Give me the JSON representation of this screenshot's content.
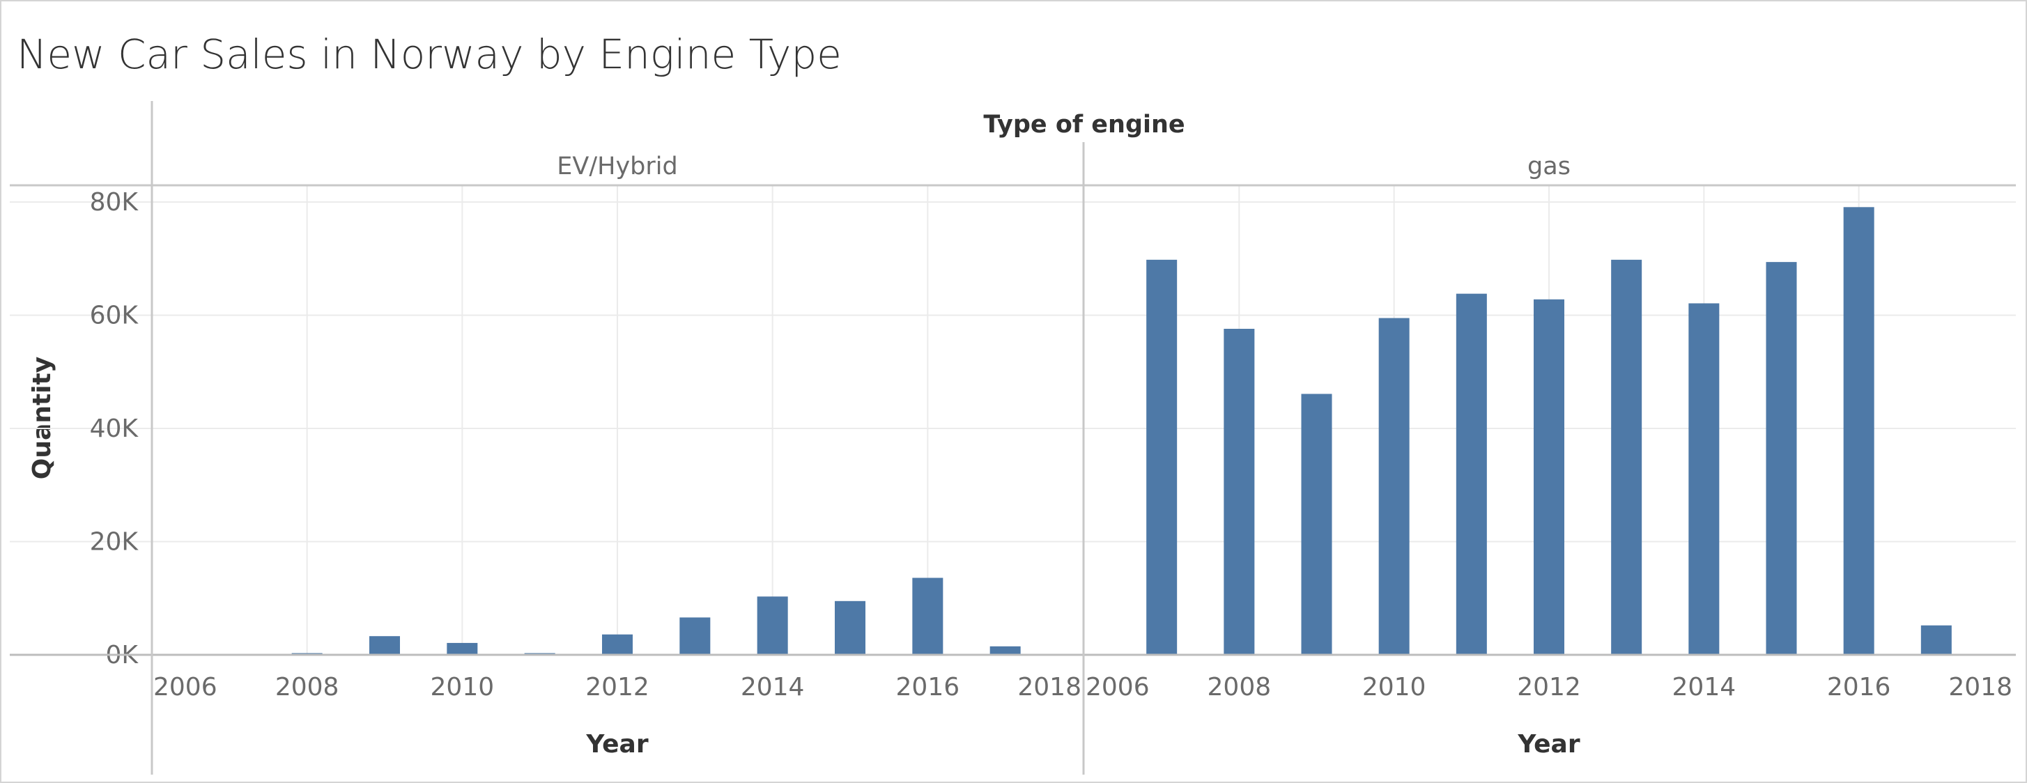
{
  "chart_data": {
    "type": "bar",
    "title": "New Car Sales in Norway by Engine Type",
    "column_header": "Type of engine",
    "xlabel": "Year",
    "ylabel": "Quantity",
    "xlim": [
      2006,
      2018
    ],
    "ylim": [
      0,
      80000
    ],
    "x_ticks": [
      "2006",
      "2008",
      "2010",
      "2012",
      "2014",
      "2016",
      "2018"
    ],
    "y_ticks": [
      "0K",
      "20K",
      "40K",
      "60K",
      "80K"
    ],
    "grid": true,
    "color": "#4e79a7",
    "panels": [
      {
        "name": "EV/Hybrid",
        "x": [
          2008,
          2009,
          2010,
          2011,
          2012,
          2013,
          2014,
          2015,
          2016,
          2017
        ],
        "values": [
          300,
          3300,
          2100,
          300,
          3600,
          6600,
          10300,
          9500,
          13600,
          1500
        ]
      },
      {
        "name": "gas",
        "x": [
          2007,
          2008,
          2009,
          2010,
          2011,
          2012,
          2013,
          2014,
          2015,
          2016,
          2017
        ],
        "values": [
          69800,
          57600,
          46100,
          59500,
          63800,
          62800,
          69800,
          62100,
          69400,
          79100,
          5200
        ]
      }
    ]
  }
}
